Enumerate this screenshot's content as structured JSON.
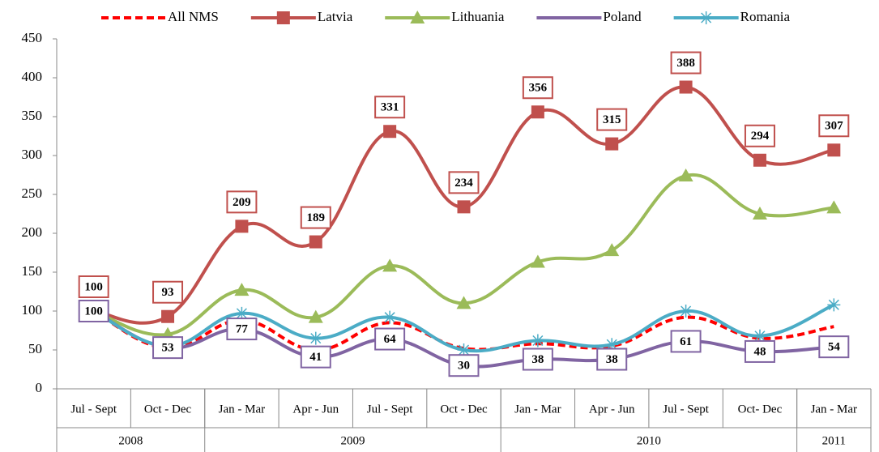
{
  "chart_data": {
    "type": "line",
    "categories": [
      "Jul - Sept",
      "Oct - Dec",
      "Jan - Mar",
      "Apr - Jun",
      "Jul - Sept",
      "Oct - Dec",
      "Jan - Mar",
      "Apr - Jun",
      "Jul  - Sept",
      "Oct- Dec",
      "Jan - Mar"
    ],
    "year_groups": [
      {
        "label": "2008",
        "span": 2
      },
      {
        "label": "2009",
        "span": 4
      },
      {
        "label": "2010",
        "span": 4
      },
      {
        "label": "2011",
        "span": 1
      }
    ],
    "series": [
      {
        "name": "All NMS",
        "color": "#ff0000",
        "dashed": true,
        "marker": "none",
        "values": [
          100,
          52,
          88,
          50,
          85,
          52,
          58,
          55,
          92,
          65,
          80
        ]
      },
      {
        "name": "Latvia",
        "color": "#c0504d",
        "marker": "square",
        "data_labels": true,
        "values": [
          100,
          93,
          209,
          189,
          331,
          234,
          356,
          315,
          388,
          294,
          307
        ]
      },
      {
        "name": "Lithuania",
        "color": "#9bbb59",
        "marker": "triangle",
        "values": [
          100,
          70,
          127,
          92,
          158,
          110,
          163,
          178,
          274,
          225,
          233
        ]
      },
      {
        "name": "Poland",
        "color": "#8064a2",
        "marker": "none",
        "data_labels": true,
        "values": [
          100,
          53,
          77,
          41,
          64,
          30,
          38,
          38,
          61,
          48,
          54
        ]
      },
      {
        "name": "Romania",
        "color": "#4bacc6",
        "marker": "star",
        "values": [
          100,
          55,
          97,
          65,
          92,
          50,
          62,
          57,
          100,
          68,
          108
        ]
      }
    ],
    "ylim": [
      0,
      450
    ],
    "yticks": [
      0,
      50,
      100,
      150,
      200,
      250,
      300,
      350,
      400,
      450
    ],
    "grid": false,
    "legend": "top"
  }
}
